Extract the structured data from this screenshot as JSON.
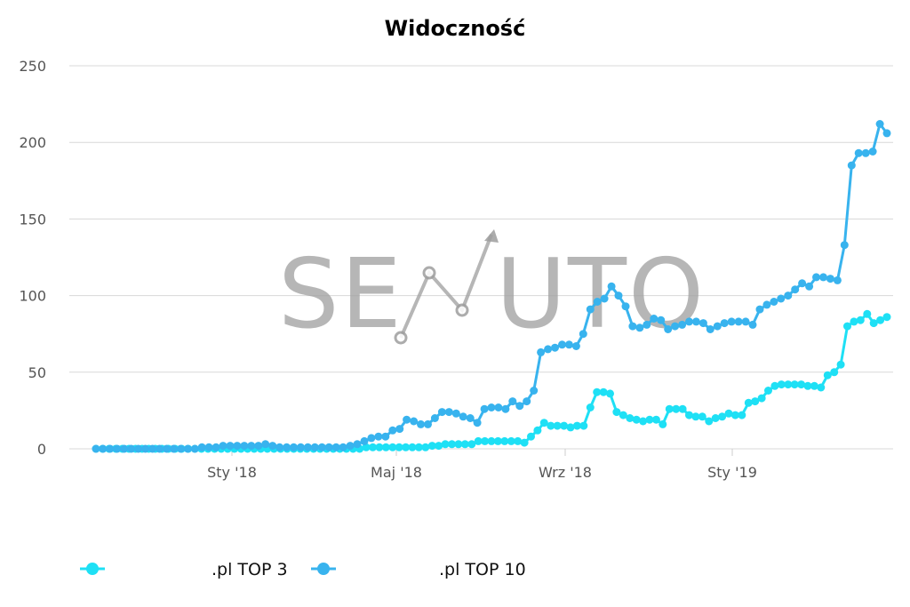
{
  "chart_data": {
    "type": "line",
    "title": "Widoczność",
    "xlabel": "",
    "ylabel": "",
    "ylim": [
      0,
      250
    ],
    "y_ticks": [
      0,
      50,
      100,
      150,
      200,
      250
    ],
    "x_tick_labels": [
      "Sty '18",
      "Maj '18",
      "Wrz '18",
      "Sty '19"
    ],
    "grid": true,
    "legend_position": "bottom-left",
    "series": [
      {
        "name": ".pl TOP 3",
        "color": "#1ee0f5",
        "values": [
          0,
          0,
          0,
          0,
          0,
          0,
          0,
          0,
          0,
          0,
          0,
          0,
          0,
          0,
          0,
          0,
          0,
          0,
          0,
          0,
          0,
          0,
          0,
          0,
          0,
          0,
          0,
          0,
          0,
          0,
          0,
          0,
          0,
          0,
          0,
          0,
          0,
          0,
          0,
          0,
          0,
          1,
          1,
          1,
          1,
          1,
          1,
          1,
          1,
          1,
          1,
          2,
          2,
          3,
          3,
          3,
          3,
          3,
          5,
          5,
          5,
          5,
          5,
          5,
          5,
          4,
          8,
          12,
          17,
          15,
          15,
          15,
          14,
          15,
          15,
          27,
          37,
          37,
          36,
          24,
          22,
          20,
          19,
          18,
          19,
          19,
          16,
          26,
          26,
          26,
          22,
          21,
          21,
          18,
          20,
          21,
          23,
          22,
          22,
          30,
          31,
          33,
          38,
          41,
          42,
          42,
          42,
          42,
          41,
          41,
          40,
          48,
          50,
          55,
          80,
          83,
          84,
          88,
          82,
          84,
          86
        ]
      },
      {
        "name": ".pl TOP 10",
        "color": "#38b3ee",
        "values": [
          0,
          0,
          0,
          0,
          0,
          0,
          0,
          0,
          0,
          0,
          0,
          0,
          0,
          0,
          0,
          1,
          1,
          1,
          2,
          2,
          2,
          2,
          2,
          2,
          3,
          2,
          1,
          1,
          1,
          1,
          1,
          1,
          1,
          1,
          1,
          1,
          2,
          3,
          5,
          7,
          8,
          8,
          12,
          13,
          19,
          18,
          16,
          16,
          20,
          24,
          24,
          23,
          21,
          20,
          17,
          26,
          27,
          27,
          26,
          31,
          28,
          31,
          38,
          63,
          65,
          66,
          68,
          68,
          67,
          75,
          91,
          96,
          98,
          106,
          100,
          93,
          80,
          79,
          81,
          85,
          84,
          78,
          80,
          81,
          83,
          83,
          82,
          78,
          80,
          82,
          83,
          83,
          83,
          81,
          91,
          94,
          96,
          98,
          100,
          104,
          108,
          106,
          112,
          112,
          111,
          110,
          133,
          185,
          193,
          193,
          194,
          212,
          206
        ]
      }
    ]
  },
  "watermark": {
    "left_text": "SE",
    "right_text": "UTO",
    "color": "#9e9e9e"
  }
}
